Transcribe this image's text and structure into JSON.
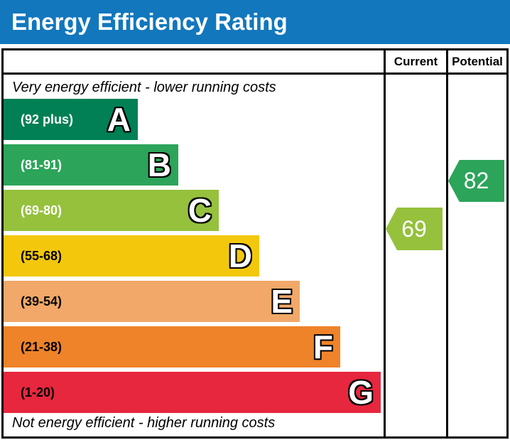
{
  "title": "Energy Efficiency Rating",
  "columns": {
    "current": "Current",
    "potential": "Potential"
  },
  "notes": {
    "top": "Very energy efficient - lower running costs",
    "bottom": "Not energy efficient - higher running costs"
  },
  "bands": [
    {
      "letter": "A",
      "range": "(92 plus)",
      "color": "#008054",
      "label_color": "#ffffff"
    },
    {
      "letter": "B",
      "range": "(81-91)",
      "color": "#2ca45a",
      "label_color": "#ffffff"
    },
    {
      "letter": "C",
      "range": "(69-80)",
      "color": "#95c13d",
      "label_color": "#ffffff"
    },
    {
      "letter": "D",
      "range": "(55-68)",
      "color": "#f3c70b",
      "label_color": "#000000"
    },
    {
      "letter": "E",
      "range": "(39-54)",
      "color": "#f1a868",
      "label_color": "#000000"
    },
    {
      "letter": "F",
      "range": "(21-38)",
      "color": "#ee8329",
      "label_color": "#000000"
    },
    {
      "letter": "G",
      "range": "(1-20)",
      "color": "#e6273e",
      "label_color": "#000000"
    }
  ],
  "ratings": {
    "current": {
      "value": "69",
      "color": "#95c13d"
    },
    "potential": {
      "value": "82",
      "color": "#2ca45a"
    }
  },
  "colors": {
    "title_bar": "#1277bd",
    "table_border": "#000000",
    "background": "#ffffff"
  },
  "chart_data": {
    "type": "bar",
    "title": "Energy Efficiency Rating",
    "categories": [
      "A",
      "B",
      "C",
      "D",
      "E",
      "F",
      "G"
    ],
    "band_ranges": [
      "92 plus",
      "81-91",
      "69-80",
      "55-68",
      "39-54",
      "21-38",
      "1-20"
    ],
    "band_colors": [
      "#008054",
      "#2ca45a",
      "#95c13d",
      "#f3c70b",
      "#f1a868",
      "#ee8329",
      "#e6273e"
    ],
    "bar_relative_widths": [
      189,
      246,
      303,
      360,
      417,
      474,
      531
    ],
    "series": [
      {
        "name": "Current",
        "value": 69,
        "band": "C",
        "color": "#95c13d"
      },
      {
        "name": "Potential",
        "value": 82,
        "band": "B",
        "color": "#2ca45a"
      }
    ],
    "annotations": [
      "Very energy efficient - lower running costs",
      "Not energy efficient - higher running costs"
    ],
    "legend_position": "none",
    "grid": false
  }
}
